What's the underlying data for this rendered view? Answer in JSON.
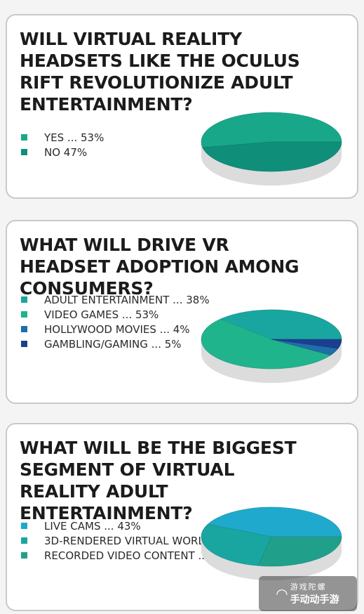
{
  "colors": {
    "teal": "#18a889",
    "teal_dark": "#0f8f7a",
    "green": "#20b48c",
    "cyan": "#1fa9cc",
    "blue": "#1f6ea8",
    "navy": "#1a3f8f",
    "card_border": "#c9c9c9",
    "side": "#dcdcdc"
  },
  "watermark": {
    "line1": "游戏陀螺",
    "line2": "手动动手游"
  },
  "chart_data": [
    {
      "type": "pie",
      "title": "WILL VIRTUAL REALITY HEADSETS LIKE THE OCULUS RIFT REVOLUTIONIZE ADULT ENTERTAINMENT?",
      "slices": [
        {
          "label": "YES ... 53%",
          "value": 53,
          "color": "#18a889"
        },
        {
          "label": "NO 47%",
          "value": 47,
          "color": "#0f8f7a"
        }
      ]
    },
    {
      "type": "pie",
      "title": "WHAT WILL DRIVE VR HEADSET ADOPTION AMONG CONSUMERS?",
      "slices": [
        {
          "label": "ADULT ENTERTAINMENT ... 38%",
          "value": 38,
          "color": "#1aa6a0"
        },
        {
          "label": "VIDEO GAMES ... 53%",
          "value": 53,
          "color": "#20b48c"
        },
        {
          "label": "HOLLYWOOD MOVIES ... 4%",
          "value": 4,
          "color": "#1f6ea8"
        },
        {
          "label": "GAMBLING/GAMING ... 5%",
          "value": 5,
          "color": "#1a3f8f"
        }
      ]
    },
    {
      "type": "pie",
      "title": "WHAT WILL BE THE BIGGEST SEGMENT OF VIRTUAL REALITY ADULT ENTERTAINMENT?",
      "slices": [
        {
          "label": "LIVE CAMS ... 43%",
          "value": 43,
          "color": "#1fa9cc"
        },
        {
          "label": "3D-RENDERED VIRTUAL WORLDS ... 29%",
          "value": 29,
          "color": "#1aa6a0"
        },
        {
          "label": "RECORDED VIDEO CONTENT ... 28%",
          "value": 28,
          "color": "#20a08a"
        }
      ]
    }
  ]
}
